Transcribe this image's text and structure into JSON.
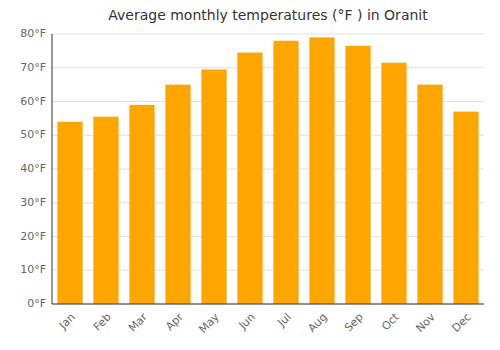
{
  "chart_data": {
    "type": "bar",
    "title": "Average monthly temperatures (°F ) in Oranit",
    "categories": [
      "Jan",
      "Feb",
      "Mar",
      "Apr",
      "May",
      "Jun",
      "Jul",
      "Aug",
      "Sep",
      "Oct",
      "Nov",
      "Dec"
    ],
    "values": [
      54,
      55.5,
      59,
      65,
      69.5,
      74.5,
      78,
      79,
      76.5,
      71.5,
      65,
      57
    ],
    "color": "#FFA500",
    "ylim": [
      0,
      80
    ],
    "yticks": [
      {
        "value": 0,
        "label": "0°F"
      },
      {
        "value": 10,
        "label": "10°F"
      },
      {
        "value": 20,
        "label": "20°F"
      },
      {
        "value": 30,
        "label": "30°F"
      },
      {
        "value": 40,
        "label": "40°F"
      },
      {
        "value": 50,
        "label": "50°F"
      },
      {
        "value": 60,
        "label": "60°F"
      },
      {
        "value": 70,
        "label": "70°F"
      },
      {
        "value": 80,
        "label": "80°F"
      }
    ],
    "grid": true
  }
}
